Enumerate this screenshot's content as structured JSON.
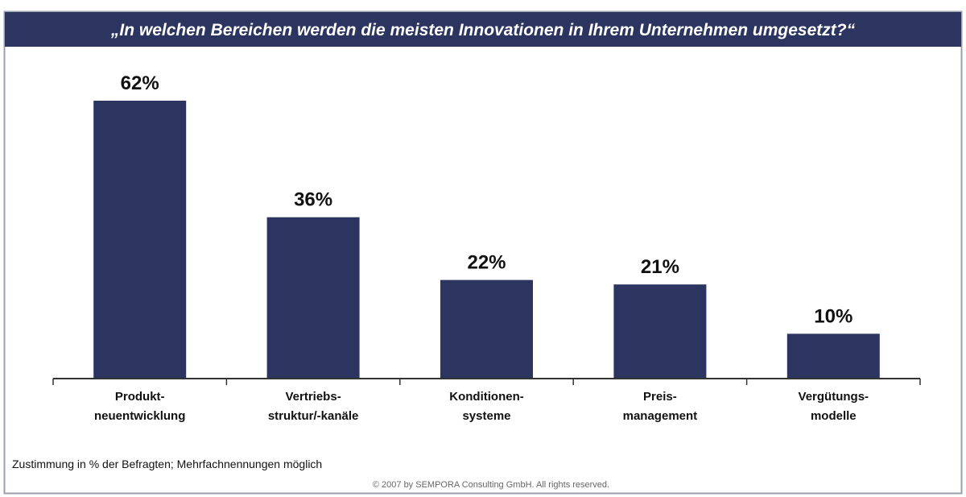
{
  "chart_data": {
    "type": "bar",
    "title": "„In welchen Bereichen werden die meisten Innovationen in Ihrem Unternehmen umgesetzt?“",
    "categories": [
      [
        "Produkt-",
        "neuentwicklung"
      ],
      [
        "Vertriebs-",
        "struktur/-kanäle"
      ],
      [
        "Konditionen-",
        "systeme"
      ],
      [
        "Preis-",
        "management"
      ],
      [
        "Vergütungs-",
        "modelle"
      ]
    ],
    "values": [
      62,
      36,
      22,
      21,
      10
    ],
    "data_labels": [
      "62%",
      "36%",
      "22%",
      "21%",
      "10%"
    ],
    "unit": "%",
    "ylim": [
      0,
      62
    ],
    "grid": false,
    "legend": "none",
    "colors": {
      "bar": "#2b3560",
      "header": "#2b3560"
    },
    "footnote": "Zustimmung in % der Befragten; Mehrfachnennungen möglich",
    "copyright": "© 2007 by SEMPORA Consulting GmbH. All rights reserved."
  }
}
